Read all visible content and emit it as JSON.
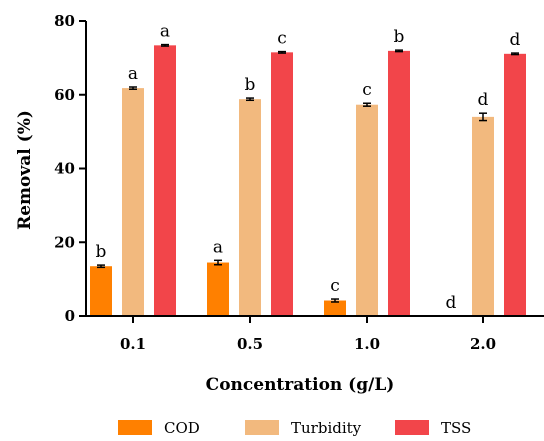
{
  "chart_data": {
    "type": "bar",
    "title": "",
    "xlabel": "Concentration (g/L)",
    "ylabel": "Removal (%)",
    "ylim": [
      0,
      80
    ],
    "yticks": [
      0,
      20,
      40,
      60,
      80
    ],
    "categories": [
      "0.1",
      "0.5",
      "1.0",
      "2.0"
    ],
    "grid": false,
    "legend_position": "bottom",
    "series": [
      {
        "name": "COD",
        "color": "#ff8000",
        "values": [
          13.5,
          14.5,
          4.2,
          0
        ],
        "errors": [
          0.3,
          0.6,
          0.4,
          0
        ],
        "labels": [
          "b",
          "a",
          "c",
          "d"
        ]
      },
      {
        "name": "Turbidity",
        "color": "#f2b97e",
        "values": [
          61.8,
          58.8,
          57.3,
          54.0
        ],
        "errors": [
          0.3,
          0.3,
          0.4,
          1.0
        ],
        "labels": [
          "a",
          "b",
          "c",
          "d"
        ]
      },
      {
        "name": "TSS",
        "color": "#f2454a",
        "values": [
          73.4,
          71.5,
          71.9,
          71.1
        ],
        "errors": [
          0.2,
          0.2,
          0.2,
          0.2
        ],
        "labels": [
          "a",
          "c",
          "b",
          "d"
        ]
      }
    ]
  }
}
